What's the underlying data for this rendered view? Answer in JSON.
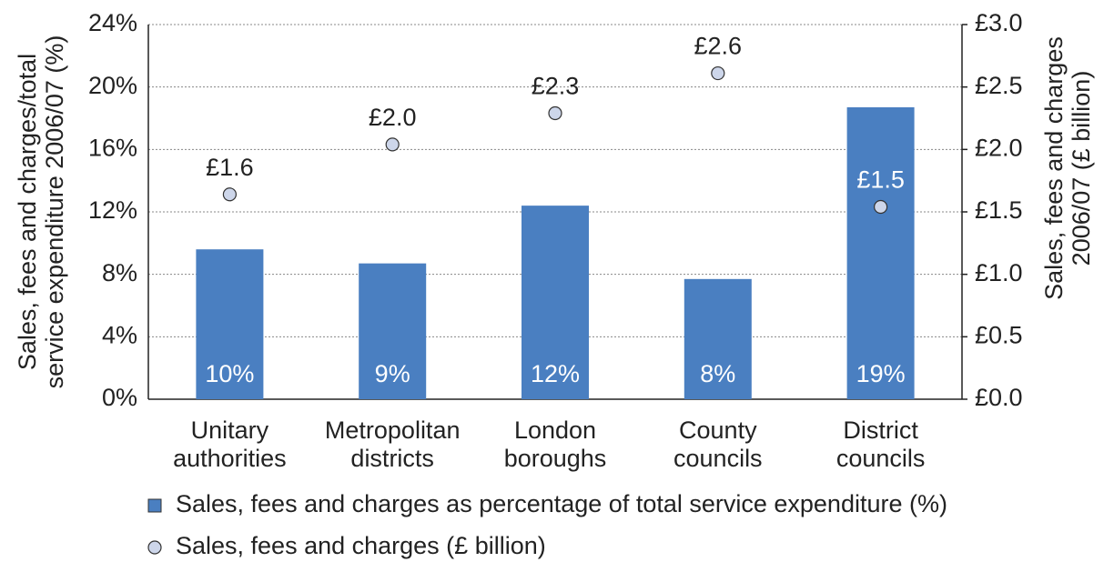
{
  "chart_data": {
    "type": "bar",
    "ylabel": [
      "Sales, fees and charges/total",
      "service expenditure 2006/07 (%)"
    ],
    "y2label": [
      "Sales, fees and charges",
      "2006/07 (£ billion)"
    ],
    "categories": [
      "Unitary authorities",
      "Metropolitan districts",
      "London boroughs",
      "County councils",
      "District councils"
    ],
    "series": [
      {
        "name": "Sales, fees and charges as percentage of total service expenditure (%)",
        "type": "bar",
        "color": "#4a7fc1",
        "values": [
          9.6,
          8.7,
          12.4,
          7.7,
          18.7
        ],
        "value_labels": [
          "10%",
          "9%",
          "12%",
          "8%",
          "19%"
        ]
      },
      {
        "name": "Sales, fees and charges (£ billion)",
        "type": "scatter",
        "axis": "y2",
        "color": "#cdd6ea",
        "values": [
          1.64,
          2.04,
          2.29,
          2.61,
          1.54
        ],
        "value_labels": [
          "£1.6",
          "£2.0",
          "£2.3",
          "£2.6",
          "£1.5"
        ]
      }
    ],
    "ylim": [
      0,
      24
    ],
    "yticks": [
      {
        "value": 0,
        "label": "0%"
      },
      {
        "value": 4,
        "label": "4%"
      },
      {
        "value": 8,
        "label": "8%"
      },
      {
        "value": 12,
        "label": "12%"
      },
      {
        "value": 16,
        "label": "16%"
      },
      {
        "value": 20,
        "label": "20%"
      },
      {
        "value": 24,
        "label": "24%"
      }
    ],
    "y2lim": [
      0,
      3
    ],
    "y2ticks": [
      {
        "value": 0,
        "label": "£0.0"
      },
      {
        "value": 0.5,
        "label": "£0.5"
      },
      {
        "value": 1,
        "label": "£1.0"
      },
      {
        "value": 1.5,
        "label": "£1.5"
      },
      {
        "value": 2,
        "label": "£2.0"
      },
      {
        "value": 2.5,
        "label": "£2.5"
      },
      {
        "value": 3,
        "label": "£3.0"
      }
    ],
    "grid": true
  }
}
